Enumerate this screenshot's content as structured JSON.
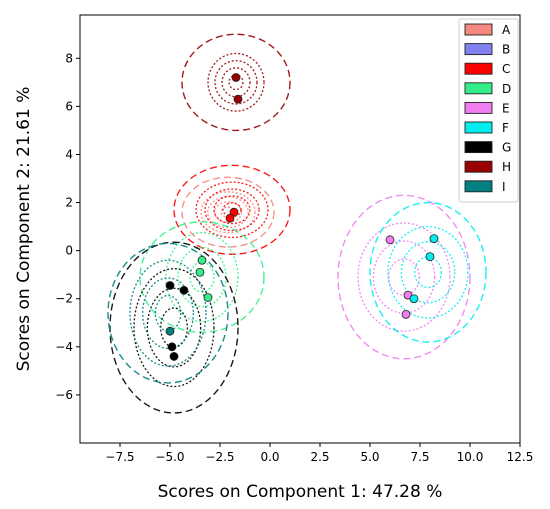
{
  "chart_data": {
    "type": "scatter",
    "title": "",
    "xlabel": "Scores on Component 1: 47.28 %",
    "ylabel": "Scores on Component 2: 21.61 %",
    "xlim": [
      -9.5,
      12.5
    ],
    "ylim": [
      -8.0,
      9.8
    ],
    "x_ticks": [
      -7.5,
      -5.0,
      -2.5,
      0.0,
      2.5,
      5.0,
      7.5,
      10.0,
      12.5
    ],
    "x_tick_labels": [
      "−7.5",
      "−5.0",
      "−2.5",
      "0.0",
      "2.5",
      "5.0",
      "7.5",
      "10.0",
      "12.5"
    ],
    "y_ticks": [
      -6,
      -4,
      -2,
      0,
      2,
      4,
      6,
      8
    ],
    "y_tick_labels": [
      "−6",
      "−4",
      "−2",
      "0",
      "2",
      "4",
      "6",
      "8"
    ],
    "grid": false,
    "legend_position": "top-right",
    "series": [
      {
        "name": "A",
        "color": "#f4877e",
        "edge": "#f4877e",
        "points": [],
        "ellipses": {
          "center": [
            -2.1,
            1.6
          ],
          "rx": 1.35,
          "ry": 0.85,
          "dotted_rings": 4,
          "dashed_rx": 2.3,
          "dashed_ry": 1.45
        }
      },
      {
        "name": "B",
        "color": "#8080f0",
        "edge": "#8080f0",
        "points": [],
        "ellipses": null
      },
      {
        "name": "C",
        "color": "#ff0000",
        "edge": "#d62728",
        "points": [
          [
            -1.8,
            1.6
          ],
          [
            -2.0,
            1.35
          ]
        ],
        "ellipses": {
          "center": [
            -1.9,
            1.7
          ],
          "rx": 1.8,
          "ry": 1.15,
          "dotted_rings": 4,
          "dashed_rx": 2.9,
          "dashed_ry": 1.85
        }
      },
      {
        "name": "D",
        "color": "#33ee88",
        "edge": "#33ee88",
        "points": [
          [
            -3.4,
            -0.4
          ],
          [
            -3.5,
            -0.9
          ],
          [
            -3.1,
            -1.95
          ]
        ],
        "ellipses": {
          "center": [
            -3.4,
            -1.1
          ],
          "rx": 1.8,
          "ry": 1.85,
          "dotted_rings": 3,
          "dashed_rx": 3.1,
          "dashed_ry": 2.3
        }
      },
      {
        "name": "E",
        "color": "#f07ef0",
        "edge": "#f07ef0",
        "points": [
          [
            6.0,
            0.45
          ],
          [
            6.9,
            -1.85
          ],
          [
            6.8,
            -2.65
          ]
        ],
        "ellipses": {
          "center": [
            6.7,
            -1.1
          ],
          "rx": 2.3,
          "ry": 2.25,
          "dotted_rings": 3,
          "dashed_rx": 3.3,
          "dashed_ry": 3.4
        }
      },
      {
        "name": "F",
        "color": "#00eeee",
        "edge": "#00eeee",
        "points": [
          [
            8.2,
            0.5
          ],
          [
            8.0,
            -0.25
          ],
          [
            7.2,
            -2.0
          ]
        ],
        "ellipses": {
          "center": [
            7.9,
            -0.9
          ],
          "rx": 2.0,
          "ry": 1.9,
          "dotted_rings": 3,
          "dashed_rx": 2.9,
          "dashed_ry": 2.9
        }
      },
      {
        "name": "G",
        "color": "#000000",
        "edge": "#000000",
        "points": [
          [
            -5.0,
            -1.45
          ],
          [
            -4.3,
            -1.65
          ],
          [
            -4.9,
            -4.0
          ],
          [
            -4.8,
            -4.4
          ]
        ],
        "ellipses": {
          "center": [
            -4.8,
            -3.2
          ],
          "rx": 2.0,
          "ry": 2.45,
          "dotted_rings": 3,
          "dashed_rx": 3.2,
          "dashed_ry": 3.55
        }
      },
      {
        "name": "H",
        "color": "#990000",
        "edge": "#990000",
        "points": [
          [
            -1.7,
            7.2
          ],
          [
            -1.6,
            6.3
          ]
        ],
        "ellipses": {
          "center": [
            -1.7,
            7.0
          ],
          "rx": 1.4,
          "ry": 1.2,
          "dotted_rings": 4,
          "dashed_rx": 2.7,
          "dashed_ry": 2.0
        }
      },
      {
        "name": "I",
        "color": "#008080",
        "edge": "#008080",
        "points": [
          [
            -5.0,
            -3.35
          ]
        ],
        "ellipses": {
          "center": [
            -5.1,
            -2.6
          ],
          "rx": 1.9,
          "ry": 2.2,
          "dotted_rings": 3,
          "dashed_rx": 3.0,
          "dashed_ry": 2.9
        }
      }
    ]
  }
}
